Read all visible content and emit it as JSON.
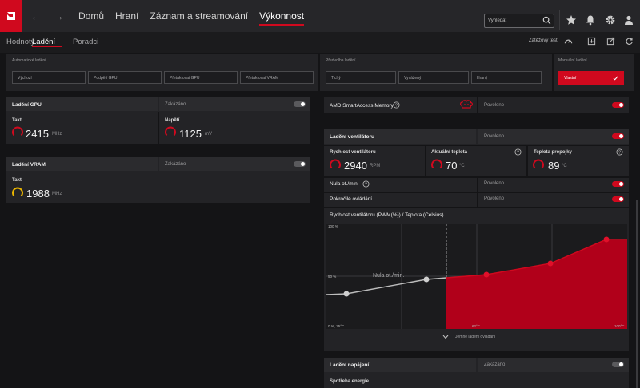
{
  "nav": {
    "items": [
      "Domů",
      "Hraní",
      "Záznam a streamování",
      "Výkonnost"
    ],
    "search_placeholder": "Vyhledat"
  },
  "subnav": {
    "items": [
      "Hodnoty",
      "Ladění",
      "Poradci"
    ],
    "stress_test": "Zátěžový test"
  },
  "presets": {
    "auto_label": "Automatické ladění",
    "auto_buttons": [
      "Výchozí",
      "Podpětí GPU",
      "Přetaktovat GPU",
      "Přetaktovat VRAM"
    ],
    "preset_label": "Předvolba ladění",
    "preset_buttons": [
      "Tichý",
      "Vyvážený",
      "Hraný"
    ],
    "manual_label": "Manuální ladění",
    "manual_button": "Vlastní"
  },
  "gpu": {
    "title": "Ladění GPU",
    "state": "Zakázáno",
    "clock_label": "Takt",
    "clock_value": "2415",
    "clock_unit": "MHz",
    "voltage_label": "Napětí",
    "voltage_value": "1125",
    "voltage_unit": "mV"
  },
  "vram": {
    "title": "Ladění VRAM",
    "state": "Zakázáno",
    "clock_label": "Takt",
    "clock_value": "1988",
    "clock_unit": "MHz"
  },
  "sam": {
    "title": "AMD SmartAccess Memory",
    "state": "Povoleno"
  },
  "fan": {
    "title": "Ladění ventilátoru",
    "state": "Povoleno",
    "speed_label": "Rychlost ventilátoru",
    "speed_value": "2940",
    "speed_unit": "RPM",
    "temp_label": "Aktuální teplota",
    "temp_value": "70",
    "temp_unit": "°C",
    "junction_label": "Teplota propojky",
    "junction_value": "89",
    "junction_unit": "°C",
    "zero_rpm_label": "Nula ot./min.",
    "zero_rpm_state": "Povoleno",
    "advanced_label": "Pokročilé ovládání",
    "advanced_state": "Povoleno",
    "curve_title": "Rychlost ventilátoru (PWM(%)) / Teplota (Celsius)",
    "y_top": "100 %",
    "y_mid": "50 %",
    "origin": "0 %, 25°C",
    "x_mid": "62°C",
    "x_end": "100°C",
    "zero_rpm_annotation": "Nula ot./min.",
    "fine_tune": "Jemné ladění ovládání"
  },
  "power": {
    "title": "Ladění napájení",
    "state": "Zakázáno",
    "consumption_label": "Spotřeba energie"
  },
  "colors": {
    "accent": "#d0091e",
    "gauge_yellow": "#e8b400"
  }
}
